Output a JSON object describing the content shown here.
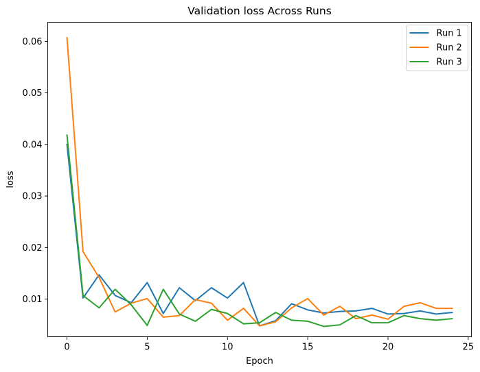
{
  "chart_data": {
    "type": "line",
    "title": "Validation loss Across Runs",
    "xlabel": "Epoch",
    "ylabel": "loss",
    "xlim": [
      -1.2,
      25.2
    ],
    "ylim": [
      0.0027,
      0.0637
    ],
    "xticks": [
      0,
      5,
      10,
      15,
      20,
      25
    ],
    "yticks": [
      0.01,
      0.02,
      0.03,
      0.04,
      0.05,
      0.06
    ],
    "ytick_labels": [
      "0.01",
      "0.02",
      "0.03",
      "0.04",
      "0.05",
      "0.06"
    ],
    "grid": false,
    "legend_position": "top-right",
    "x": [
      0,
      1,
      2,
      3,
      4,
      5,
      6,
      7,
      8,
      9,
      10,
      11,
      12,
      13,
      14,
      15,
      16,
      17,
      18,
      19,
      20,
      21,
      22,
      23,
      24
    ],
    "series": [
      {
        "name": "Run 1",
        "color": "#1f77b4",
        "values": [
          0.04,
          0.0102,
          0.0147,
          0.0107,
          0.0093,
          0.0132,
          0.0072,
          0.0122,
          0.0097,
          0.0122,
          0.0102,
          0.0132,
          0.0048,
          0.0058,
          0.0091,
          0.0079,
          0.0073,
          0.0076,
          0.0077,
          0.0082,
          0.0071,
          0.0072,
          0.0077,
          0.0071,
          0.0074
        ]
      },
      {
        "name": "Run 2",
        "color": "#ff7f0e",
        "values": [
          0.0607,
          0.0192,
          0.0142,
          0.0075,
          0.0092,
          0.0101,
          0.0065,
          0.0068,
          0.0099,
          0.0092,
          0.0059,
          0.0082,
          0.0048,
          0.0056,
          0.0083,
          0.0101,
          0.0069,
          0.0086,
          0.0062,
          0.0069,
          0.0061,
          0.0086,
          0.0093,
          0.0082,
          0.0082
        ]
      },
      {
        "name": "Run 3",
        "color": "#2ca02c",
        "values": [
          0.0418,
          0.0107,
          0.0083,
          0.0119,
          0.0089,
          0.0049,
          0.0119,
          0.0071,
          0.0057,
          0.008,
          0.0072,
          0.0052,
          0.0054,
          0.0074,
          0.0059,
          0.0057,
          0.0047,
          0.005,
          0.0068,
          0.0054,
          0.0054,
          0.0068,
          0.0062,
          0.0059,
          0.0062
        ]
      }
    ]
  }
}
